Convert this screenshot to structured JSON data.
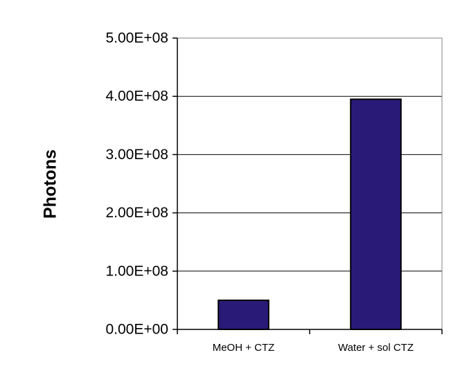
{
  "chart_data": {
    "type": "bar",
    "title": "",
    "xlabel": "",
    "ylabel": "Photons",
    "categories": [
      "MeOH + CTZ",
      "Water + sol CTZ"
    ],
    "values": [
      50000000,
      395000000
    ],
    "ylim": [
      0,
      500000000
    ],
    "yticks": [
      0,
      100000000,
      200000000,
      300000000,
      400000000,
      500000000
    ],
    "ytick_labels": [
      "0.00E+00",
      "1.00E+08",
      "2.00E+08",
      "3.00E+08",
      "4.00E+08",
      "5.00E+08"
    ],
    "grid": true,
    "legend": "none",
    "colors": {
      "bar_fill": "#2a1a78",
      "bar_stroke": "#000000",
      "grid": "#000000",
      "plot_border": "#808080"
    }
  }
}
